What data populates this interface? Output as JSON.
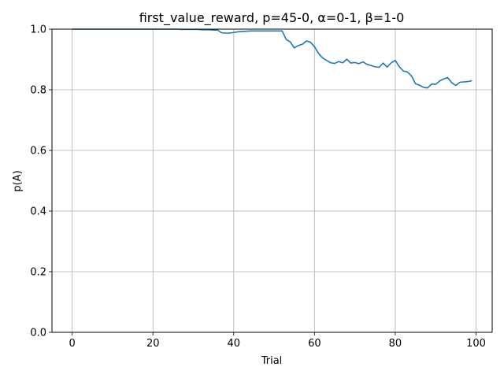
{
  "chart_data": {
    "type": "line",
    "title": "first_value_reward, p=45-0, α=0-1, β=1-0",
    "xlabel": "Trial",
    "ylabel": "p(A)",
    "xlim": [
      -5,
      104
    ],
    "ylim": [
      0.0,
      1.0
    ],
    "xticks": [
      0,
      20,
      40,
      60,
      80,
      100
    ],
    "xtick_labels": [
      "0",
      "20",
      "40",
      "60",
      "80",
      "100"
    ],
    "yticks": [
      0.0,
      0.2,
      0.4,
      0.6,
      0.8,
      1.0
    ],
    "ytick_labels": [
      "0.0",
      "0.2",
      "0.4",
      "0.6",
      "0.8",
      "1.0"
    ],
    "grid": true,
    "line_color": "#1f77b4",
    "series": [
      {
        "x": [
          0,
          1,
          2,
          3,
          4,
          5,
          6,
          7,
          8,
          9,
          10,
          11,
          12,
          13,
          14,
          15,
          16,
          17,
          18,
          19,
          20,
          21,
          22,
          23,
          24,
          25,
          26,
          27,
          28,
          29,
          30,
          31,
          32,
          33,
          34,
          35,
          36,
          37,
          38,
          39,
          40,
          41,
          42,
          43,
          44,
          45,
          46,
          47,
          48,
          49,
          50,
          51,
          52,
          53,
          54,
          55,
          56,
          57,
          58,
          59,
          60,
          61,
          62,
          63,
          64,
          65,
          66,
          67,
          68,
          69,
          70,
          71,
          72,
          73,
          74,
          75,
          76,
          77,
          78,
          79,
          80,
          81,
          82,
          83,
          84,
          85,
          86,
          87,
          88,
          89,
          90,
          91,
          92,
          93,
          94,
          95,
          96,
          97,
          98,
          99
        ],
        "y": [
          1.0,
          1.0,
          1.0,
          1.0,
          1.0,
          1.0,
          1.0,
          1.0,
          1.0,
          1.0,
          1.0,
          1.0,
          1.0,
          1.0,
          1.0,
          1.0,
          1.0,
          1.0,
          1.0,
          1.0,
          1.0,
          1.0,
          1.0,
          1.0,
          1.0,
          1.0,
          1.0,
          0.999,
          0.999,
          0.999,
          0.999,
          0.999,
          0.998,
          0.998,
          0.998,
          0.997,
          0.997,
          0.988,
          0.987,
          0.987,
          0.989,
          0.991,
          0.992,
          0.993,
          0.994,
          0.994,
          0.994,
          0.994,
          0.994,
          0.994,
          0.994,
          0.994,
          0.994,
          0.966,
          0.958,
          0.938,
          0.946,
          0.95,
          0.961,
          0.957,
          0.942,
          0.92,
          0.905,
          0.897,
          0.889,
          0.887,
          0.893,
          0.889,
          0.901,
          0.888,
          0.89,
          0.886,
          0.892,
          0.884,
          0.88,
          0.876,
          0.874,
          0.888,
          0.875,
          0.889,
          0.897,
          0.876,
          0.862,
          0.859,
          0.846,
          0.82,
          0.815,
          0.808,
          0.806,
          0.819,
          0.818,
          0.829,
          0.836,
          0.84,
          0.823,
          0.814,
          0.825,
          0.826,
          0.827,
          0.83
        ]
      }
    ]
  }
}
